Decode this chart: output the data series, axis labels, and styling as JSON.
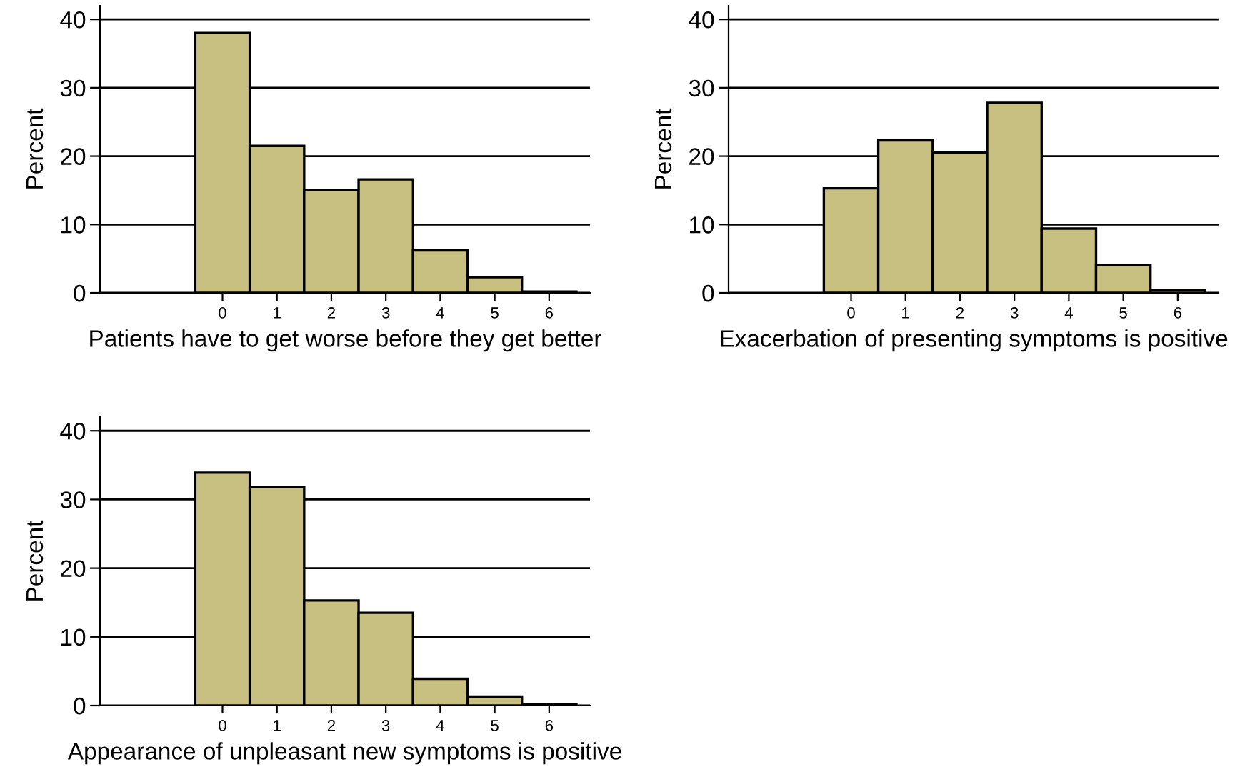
{
  "chart_data": [
    {
      "type": "histogram",
      "xlabel": "Patients have to get worse before they get better",
      "ylabel": "Percent",
      "bins": [
        -0.5,
        0.5,
        1.5,
        2.5,
        3.5,
        4.5,
        5.5,
        6.5
      ],
      "values": [
        38,
        21.5,
        15,
        16.6,
        6.2,
        2.3,
        0.2
      ],
      "color": "#c8c080",
      "xlim": [
        -2.25,
        6.75
      ],
      "xticks": [
        0,
        1,
        2,
        3,
        4,
        5,
        6
      ],
      "ylim": [
        0,
        42
      ],
      "yticks": [
        0,
        10,
        20,
        30,
        40
      ],
      "grid": "y"
    },
    {
      "type": "histogram",
      "xlabel": "Exacerbation of presenting symptoms is positive",
      "ylabel": "Percent",
      "bins": [
        -0.5,
        0.5,
        1.5,
        2.5,
        3.5,
        4.5,
        5.5,
        6.5
      ],
      "values": [
        15.3,
        22.3,
        20.5,
        27.8,
        9.4,
        4.1,
        0.4
      ],
      "color": "#c8c080",
      "xlim": [
        -2.25,
        6.75
      ],
      "xticks": [
        0,
        1,
        2,
        3,
        4,
        5,
        6
      ],
      "ylim": [
        0,
        42
      ],
      "yticks": [
        0,
        10,
        20,
        30,
        40
      ],
      "grid": "y"
    },
    {
      "type": "histogram",
      "xlabel": "Appearance of unpleasant new symptoms is positive",
      "ylabel": "Percent",
      "bins": [
        -0.5,
        0.5,
        1.5,
        2.5,
        3.5,
        4.5,
        5.5,
        6.5
      ],
      "values": [
        33.9,
        31.8,
        15.3,
        13.5,
        3.9,
        1.3,
        0.2
      ],
      "color": "#c8c080",
      "xlim": [
        -2.25,
        6.75
      ],
      "xticks": [
        0,
        1,
        2,
        3,
        4,
        5,
        6
      ],
      "ylim": [
        0,
        42
      ],
      "yticks": [
        0,
        10,
        20,
        30,
        40
      ],
      "grid": "y"
    }
  ]
}
